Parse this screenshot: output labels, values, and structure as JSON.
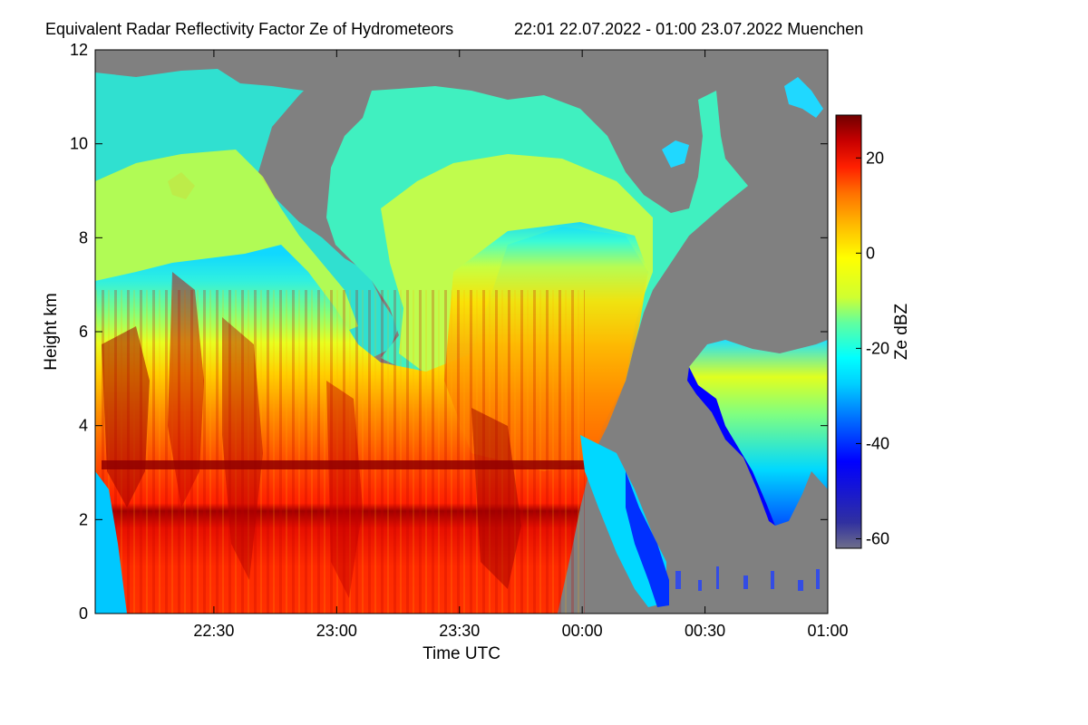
{
  "chart_data": {
    "type": "heatmap",
    "title": "Equivalent Radar Reflectivity Factor Ze of Hydrometeors",
    "subtitle": "22:01 22.07.2022 - 01:00 23.07.2022 Muenchen",
    "xlabel": "Time UTC",
    "ylabel": "Height km",
    "xlim": [
      "22:01",
      "01:00"
    ],
    "ylim": [
      0,
      12
    ],
    "x_ticks": [
      {
        "label": "22:30",
        "minutes": 29
      },
      {
        "label": "23:00",
        "minutes": 59
      },
      {
        "label": "23:30",
        "minutes": 89
      },
      {
        "label": "00:00",
        "minutes": 119
      },
      {
        "label": "00:30",
        "minutes": 149
      },
      {
        "label": "01:00",
        "minutes": 179
      }
    ],
    "y_ticks": [
      0,
      2,
      4,
      6,
      8,
      10,
      12
    ],
    "colorbar": {
      "label": "Ze dBZ",
      "range": [
        -62,
        29
      ],
      "ticks": [
        20,
        0,
        -20,
        -40,
        -60
      ],
      "colormap": [
        "#6e6e8a",
        "#2020a0",
        "#0000ff",
        "#0060ff",
        "#00c0ff",
        "#00ffff",
        "#40ffc0",
        "#c0ff40",
        "#ffff00",
        "#ffc000",
        "#ff8000",
        "#ff3000",
        "#e00000",
        "#a00000",
        "#700000"
      ]
    },
    "no_data_color": "#808080",
    "features": [
      {
        "name": "melting layer bright band",
        "height_km": 3.2
      },
      {
        "name": "main precipitation",
        "start": "22:01",
        "end": "00:04",
        "top_km": 11.5
      },
      {
        "name": "isolated cloud",
        "start": "00:40",
        "end": "01:00",
        "top_km": 5.8
      }
    ]
  }
}
